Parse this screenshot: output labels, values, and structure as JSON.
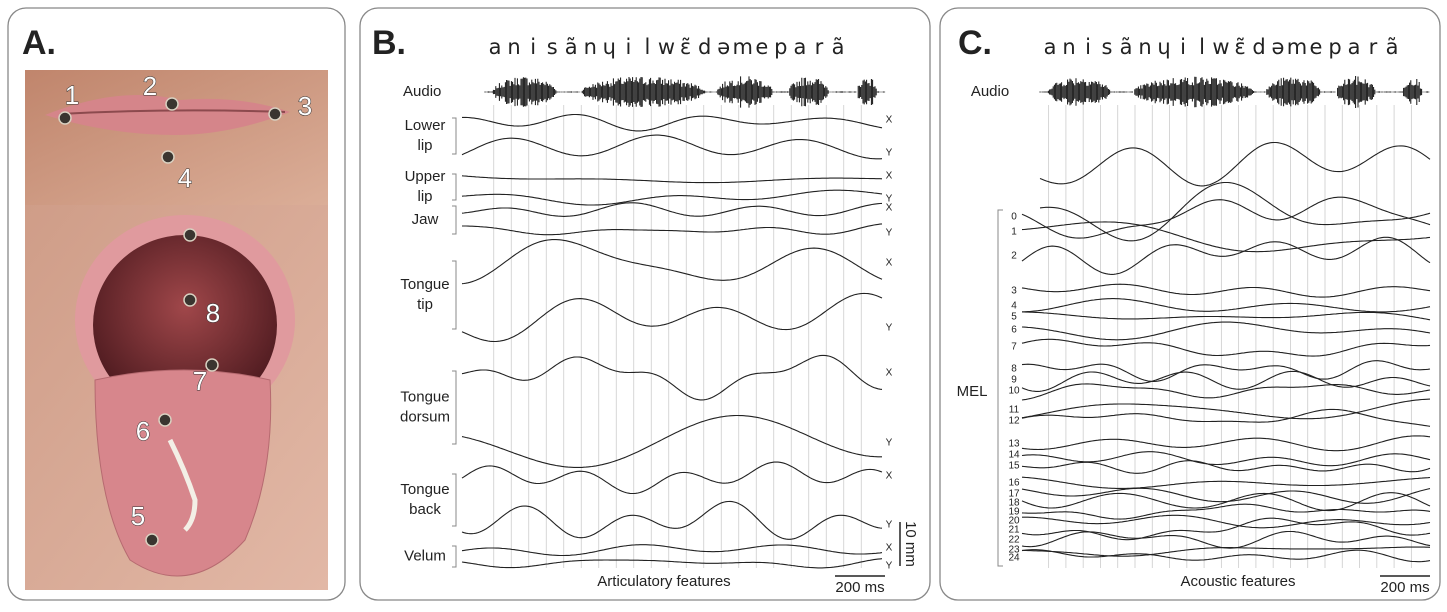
{
  "panel_a": {
    "label": "A.",
    "sensor_labels": [
      "1",
      "2",
      "3",
      "4",
      "5",
      "6",
      "7",
      "8"
    ]
  },
  "panel_b": {
    "label": "B.",
    "phonemes": [
      "a",
      "n",
      "i",
      "s",
      "ã",
      "n",
      "ɥ",
      "i",
      "l",
      "w",
      "ɛ̃",
      "d",
      "ə",
      "m",
      "e",
      "p",
      "a",
      "r",
      "ã"
    ],
    "audio_label": "Audio",
    "features": [
      {
        "name_lines": [
          "Lower",
          "lip"
        ],
        "traces": [
          "X",
          "Y"
        ]
      },
      {
        "name_lines": [
          "Upper",
          "lip"
        ],
        "traces": [
          "X",
          "Y"
        ]
      },
      {
        "name_lines": [
          "Jaw"
        ],
        "traces": [
          "X",
          "Y"
        ]
      },
      {
        "name_lines": [
          "Tongue",
          "tip"
        ],
        "traces": [
          "X",
          "Y"
        ]
      },
      {
        "name_lines": [
          "Tongue",
          "dorsum"
        ],
        "traces": [
          "X",
          "Y"
        ]
      },
      {
        "name_lines": [
          "Tongue",
          "back"
        ],
        "traces": [
          "X",
          "Y"
        ]
      },
      {
        "name_lines": [
          "Velum"
        ],
        "traces": [
          "X",
          "Y"
        ]
      }
    ],
    "scale_vertical": "10 mm",
    "scale_horizontal": "200 ms",
    "caption": "Articulatory features"
  },
  "panel_c": {
    "label": "C.",
    "phonemes": [
      "a",
      "n",
      "i",
      "s",
      "ã",
      "n",
      "ɥ",
      "i",
      "l",
      "w",
      "ɛ̃",
      "d",
      "ə",
      "m",
      "e",
      "p",
      "a",
      "r",
      "ã"
    ],
    "audio_label": "Audio",
    "group_label": "MEL",
    "channels": [
      "0",
      "1",
      "2",
      "3",
      "4",
      "5",
      "6",
      "7",
      "8",
      "9",
      "10",
      "11",
      "12",
      "13",
      "14",
      "15",
      "16",
      "17",
      "18",
      "19",
      "20",
      "21",
      "22",
      "23",
      "24"
    ],
    "scale_horizontal": "200 ms",
    "caption": "Acoustic features"
  }
}
